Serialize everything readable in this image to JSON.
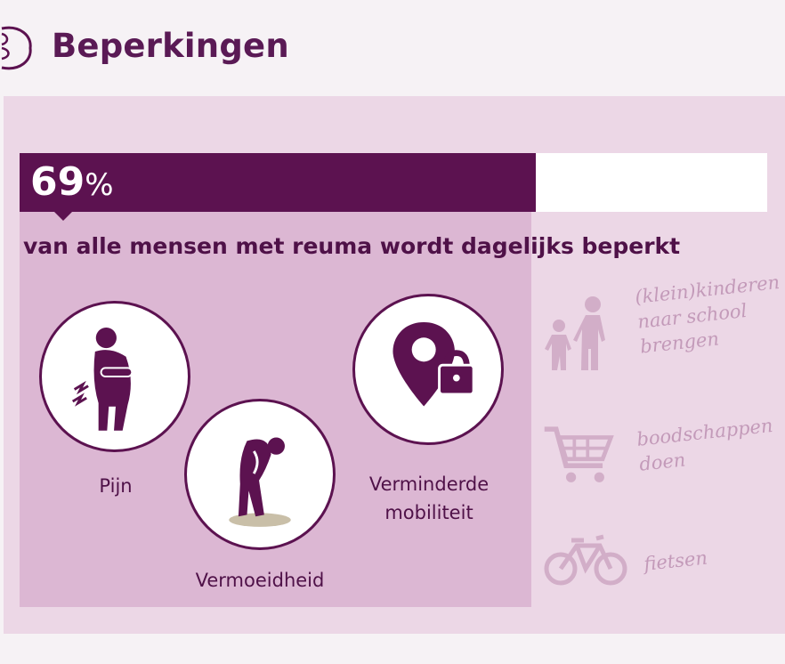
{
  "header": {
    "title": "Beperkingen"
  },
  "stat": {
    "percent_value": 69,
    "percent_number": "69",
    "percent_symbol": "%",
    "description": "van alle mensen met reuma wordt dagelijks beperkt"
  },
  "limitations": [
    {
      "label": "Pijn",
      "icon": "pain-person-icon"
    },
    {
      "label": "Vermoeidheid",
      "icon": "tired-person-icon"
    },
    {
      "label_line1": "Verminderde",
      "label_line2": "mobiliteit",
      "icon": "location-lock-icon"
    }
  ],
  "activities": [
    {
      "line1": "(klein)kinderen",
      "line2": "naar school",
      "line3": "brengen",
      "icon": "adult-child-walking-icon"
    },
    {
      "line1": "boodschappen",
      "line2": "doen",
      "icon": "shopping-cart-icon"
    },
    {
      "line1": "fietsen",
      "icon": "bicycle-icon"
    }
  ],
  "colors": {
    "primary": "#5c1250",
    "panel": "#ecd7e6",
    "highlight": "#dcb7d3",
    "handwriting": "#c39ab9"
  }
}
